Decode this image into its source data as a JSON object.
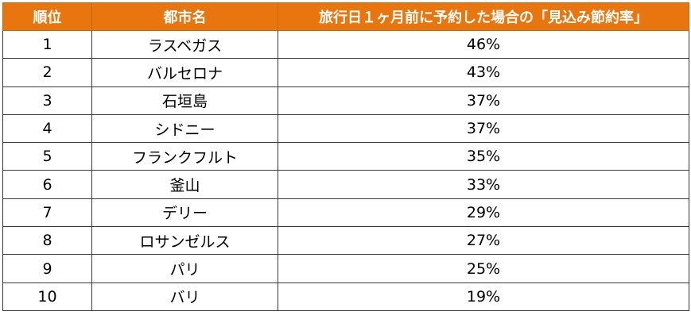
{
  "table": {
    "headers": [
      "順位",
      "都市名",
      "旅行日１ヶ月前に予約した場合の「見込み節約率」"
    ],
    "rows": [
      {
        "rank": "1",
        "city": "ラスベガス",
        "rate": "46%"
      },
      {
        "rank": "2",
        "city": "バルセロナ",
        "rate": "43%"
      },
      {
        "rank": "3",
        "city": "石垣島",
        "rate": "37%"
      },
      {
        "rank": "4",
        "city": "シドニー",
        "rate": "37%"
      },
      {
        "rank": "5",
        "city": "フランクフルト",
        "rate": "35%"
      },
      {
        "rank": "6",
        "city": "釜山",
        "rate": "33%"
      },
      {
        "rank": "7",
        "city": "デリー",
        "rate": "29%"
      },
      {
        "rank": "8",
        "city": "ロサンゼルス",
        "rate": "27%"
      },
      {
        "rank": "9",
        "city": "パリ",
        "rate": "25%"
      },
      {
        "rank": "10",
        "city": "バリ",
        "rate": "19%"
      }
    ]
  },
  "colors": {
    "header_bg": "#e8750e",
    "header_text": "#ffffff",
    "border": "#3a3a3a"
  }
}
